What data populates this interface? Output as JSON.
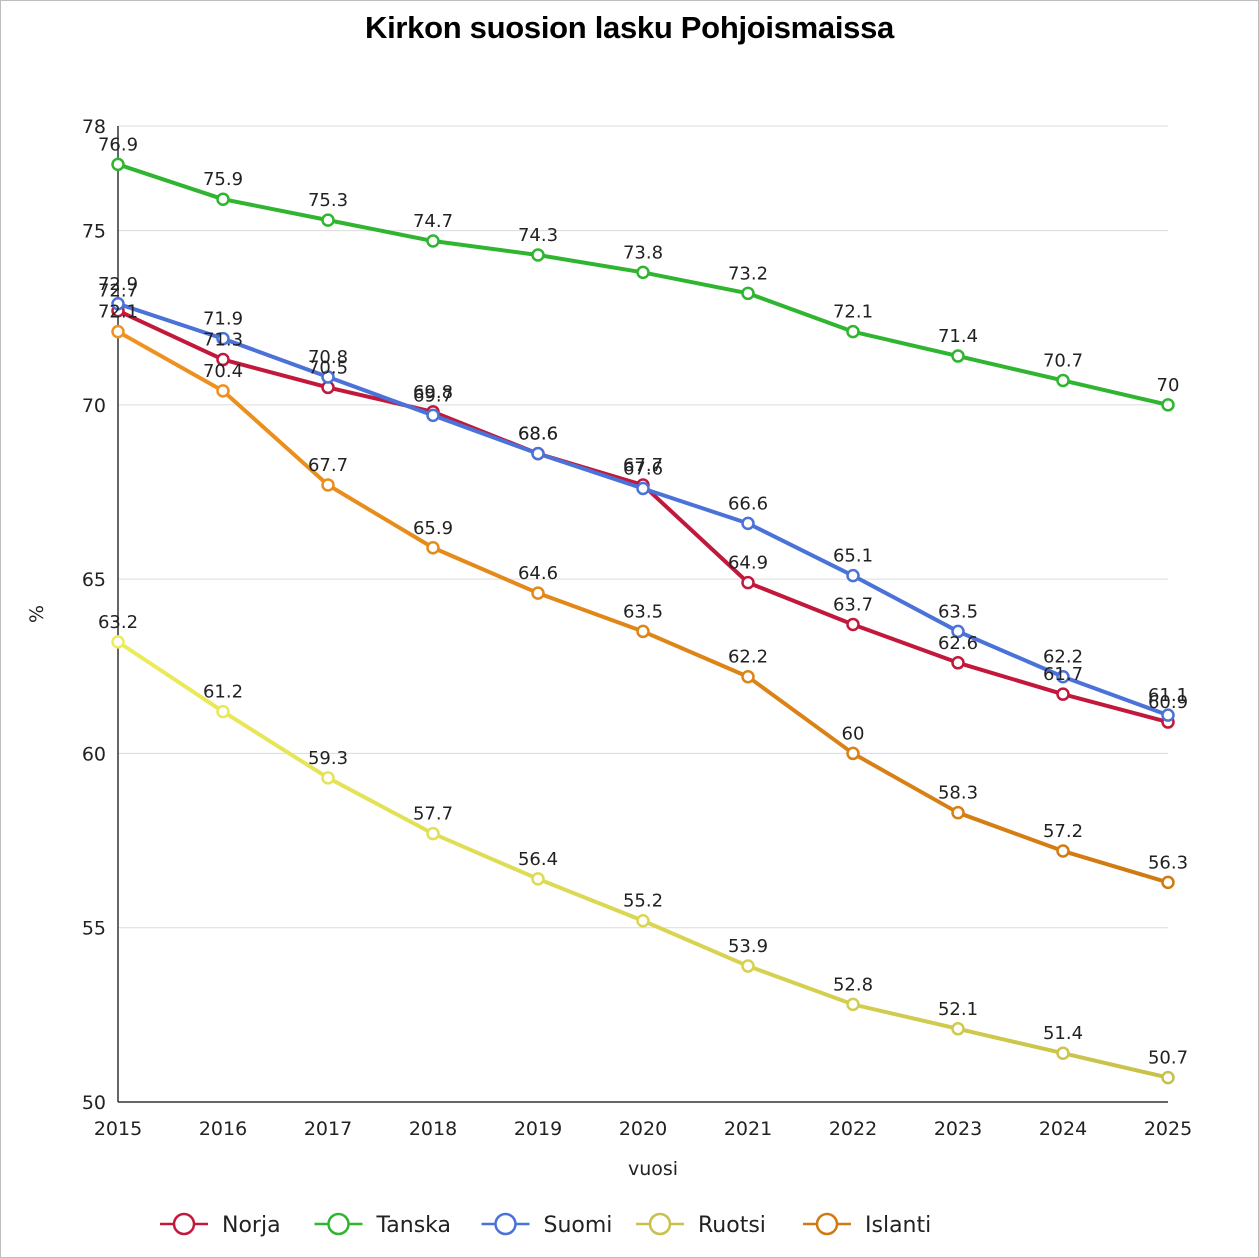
{
  "chart_data": {
    "type": "line",
    "title": "Kirkon suosion lasku Pohjoismaissa",
    "xlabel": "vuosi",
    "ylabel": "%",
    "x": [
      "2015",
      "2016",
      "2017",
      "2018",
      "2019",
      "2020",
      "2021",
      "2022",
      "2023",
      "2024",
      "2025"
    ],
    "ylim": [
      50,
      78
    ],
    "yticks": [
      50,
      55,
      60,
      65,
      70,
      75,
      78
    ],
    "grid": true,
    "legend_position": "bottom",
    "series": [
      {
        "name": "Norja",
        "color": "#c2183c",
        "values": [
          72.7,
          71.3,
          70.5,
          69.8,
          68.6,
          67.7,
          64.9,
          63.7,
          62.6,
          61.7,
          60.9
        ]
      },
      {
        "name": "Tanska",
        "color": "#2fb52f",
        "values": [
          76.9,
          75.9,
          75.3,
          74.7,
          74.3,
          73.8,
          73.2,
          72.1,
          71.4,
          70.7,
          70
        ]
      },
      {
        "name": "Suomi",
        "color": "#4a72d8",
        "values": [
          72.9,
          71.9,
          70.8,
          69.7,
          68.6,
          67.6,
          66.6,
          65.1,
          63.5,
          62.2,
          61.1
        ]
      },
      {
        "name": "Ruotsi",
        "color": "#ecec5a",
        "color_end": "#c8c04a",
        "values": [
          63.2,
          61.2,
          59.3,
          57.7,
          56.4,
          55.2,
          53.9,
          52.8,
          52.1,
          51.4,
          50.7
        ]
      },
      {
        "name": "Islanti",
        "color": "#f0921e",
        "color_end": "#cf7a12",
        "values": [
          72.1,
          70.4,
          67.7,
          65.9,
          64.6,
          63.5,
          62.2,
          60,
          58.3,
          57.2,
          56.3
        ]
      }
    ]
  }
}
